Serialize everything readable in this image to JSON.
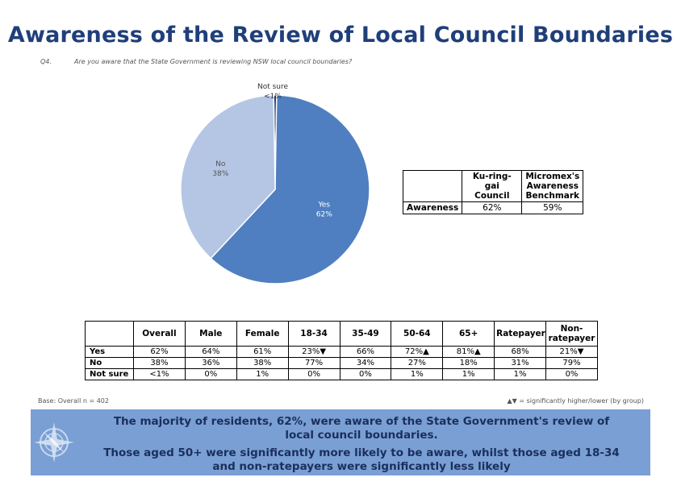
{
  "title": "Awareness of the Review of Local Council Boundaries",
  "question": {
    "number": "Q4.",
    "text": "Are you aware that the State Government is reviewing NSW local council boundaries?"
  },
  "chart_data": {
    "type": "pie",
    "slices": [
      {
        "label": "Yes",
        "value": 62,
        "display": "62%",
        "color": "#4f7fc0"
      },
      {
        "label": "No",
        "value": 38,
        "display": "38%",
        "color": "#b4c6e4"
      },
      {
        "label": "Not sure",
        "value": 0.5,
        "display": "<1%",
        "color": "#1f3864"
      }
    ]
  },
  "benchmark": {
    "col1": "Ku-ring-gai Council",
    "col2": "Micromex's Awareness Benchmark",
    "row_label": "Awareness",
    "v1": "62%",
    "v2": "59%"
  },
  "table": {
    "headers": [
      "Overall",
      "Male",
      "Female",
      "18-34",
      "35-49",
      "50-64",
      "65+",
      "Ratepayer",
      "Non-ratepayer"
    ],
    "rows": [
      {
        "label": "Yes",
        "values": [
          "62%",
          "64%",
          "61%",
          "23%▼",
          "66%",
          "72%▲",
          "81%▲",
          "68%",
          "21%▼"
        ]
      },
      {
        "label": "No",
        "values": [
          "38%",
          "36%",
          "38%",
          "77%",
          "34%",
          "27%",
          "18%",
          "31%",
          "79%"
        ]
      },
      {
        "label": "Not sure",
        "values": [
          "<1%",
          "0%",
          "1%",
          "0%",
          "0%",
          "1%",
          "1%",
          "1%",
          "0%"
        ]
      }
    ]
  },
  "base_note": "Base: Overall n = 402",
  "sig_note": "▲▼ = significantly higher/lower (by group)",
  "summary": {
    "line1": "The majority of residents, 62%, were aware of the State Government's review of",
    "line2": "local council boundaries.",
    "line3": "Those aged 50+ were significantly more likely to be aware, whilst those aged 18-34",
    "line4": "and non-ratepayers were significantly less likely"
  },
  "colors": {
    "title": "#1f3f7a",
    "summary_bg": "#7a9fd4",
    "summary_text": "#1a2f5c"
  }
}
